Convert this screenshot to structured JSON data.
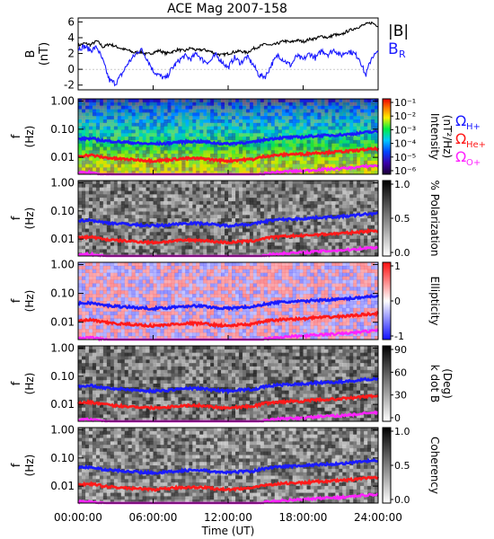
{
  "title": "ACE Mag 2007-158",
  "xaxis": {
    "label": "Time (UT)",
    "ticks": [
      "00:00:00",
      "06:00:00",
      "12:00:00",
      "18:00:00",
      "24:00:00"
    ],
    "tick_hours": [
      0,
      6,
      12,
      18,
      24
    ],
    "range_hours": [
      0,
      24
    ]
  },
  "colors": {
    "B_total": "#000000",
    "B_R": "#1a1aff",
    "H_plus": "#1a1aff",
    "He_plus": "#ff1a1a",
    "O_plus": "#ff22ff"
  },
  "chart_data": [
    {
      "type": "line",
      "panel": "magnetic-field",
      "ylabel": "B",
      "yunit": "(nT)",
      "yticks": [
        "6",
        "4",
        "2",
        "0",
        "-2"
      ],
      "ytick_values": [
        6,
        4,
        2,
        0,
        -2
      ],
      "ylim": [
        -2.6,
        6.5
      ],
      "legend": [
        "|B|",
        "B",
        "R"
      ],
      "series": [
        {
          "name": "|B|",
          "x": [
            0,
            0.5,
            1,
            1.5,
            2,
            2.5,
            3,
            3.5,
            4,
            4.5,
            5,
            5.5,
            6,
            6.5,
            7,
            7.5,
            8,
            8.5,
            9,
            9.5,
            10,
            10.5,
            11,
            11.5,
            12,
            12.5,
            13,
            13.5,
            14,
            14.5,
            15,
            15.5,
            16,
            16.5,
            17,
            17.5,
            18,
            18.5,
            19,
            19.5,
            20,
            20.5,
            21,
            21.5,
            22,
            22.5,
            23,
            23.5,
            24
          ],
          "values": [
            3.0,
            3.3,
            3.1,
            3.6,
            2.8,
            3.2,
            2.9,
            2.6,
            2.4,
            2.1,
            2.2,
            1.9,
            2.1,
            2.4,
            2.0,
            2.2,
            2.5,
            2.3,
            2.7,
            2.4,
            2.5,
            2.3,
            2.0,
            1.8,
            2.0,
            2.2,
            2.3,
            2.1,
            2.6,
            2.9,
            3.2,
            3.0,
            3.3,
            3.6,
            3.4,
            3.7,
            3.5,
            3.8,
            3.9,
            4.2,
            4.0,
            4.4,
            4.3,
            4.8,
            5.1,
            5.4,
            5.7,
            5.9,
            5.5
          ]
        },
        {
          "name": "B_R",
          "x": [
            0,
            0.5,
            1,
            1.5,
            2,
            2.5,
            3,
            3.5,
            4,
            4.5,
            5,
            5.5,
            6,
            6.5,
            7,
            7.5,
            8,
            8.5,
            9,
            9.5,
            10,
            10.5,
            11,
            11.5,
            12,
            12.5,
            13,
            13.5,
            14,
            14.5,
            15,
            15.5,
            16,
            16.5,
            17,
            17.5,
            18,
            18.5,
            19,
            19.5,
            20,
            20.5,
            21,
            21.5,
            22,
            22.5,
            23,
            23.5,
            24
          ],
          "values": [
            2.6,
            2.9,
            2.4,
            2.8,
            1.0,
            -1.4,
            -1.8,
            -0.6,
            0.8,
            1.7,
            2.6,
            1.4,
            -0.2,
            -0.8,
            -1.2,
            0.1,
            1.0,
            1.7,
            1.3,
            2.0,
            1.1,
            0.9,
            1.8,
            1.0,
            0.2,
            1.5,
            0.8,
            1.6,
            0.6,
            -0.8,
            -0.9,
            0.7,
            1.8,
            1.1,
            0.5,
            1.7,
            1.2,
            2.0,
            1.4,
            2.4,
            1.9,
            2.5,
            1.7,
            2.3,
            2.1,
            1.4,
            -0.8,
            1.6,
            2.1
          ]
        }
      ]
    },
    {
      "type": "heatmap",
      "panel": "intensity",
      "ylabel": "f",
      "yunit": "(Hz)",
      "yticks": [
        "1.00",
        "0.10",
        "0.01"
      ],
      "ytick_values": [
        1.0,
        0.1,
        0.01
      ],
      "ylim": [
        0.0025,
        1.2
      ],
      "colorbar": {
        "label": "Intensity",
        "unit": "(nT²/Hz)",
        "ticks": [
          "10⁻¹",
          "10⁻²",
          "10⁻³",
          "10⁻⁴",
          "10⁻⁵",
          "10⁻⁶"
        ],
        "tick_values": [
          0.1,
          0.01,
          0.001,
          0.0001,
          1e-05,
          1e-06
        ],
        "scale": "rainbow"
      },
      "legend": [
        "Ω",
        "H+",
        "Ω",
        "He+",
        "Ω",
        "O+"
      ]
    },
    {
      "type": "heatmap",
      "panel": "polarization",
      "ylabel": "f",
      "yunit": "(Hz)",
      "yticks": [
        "1.00",
        "0.10",
        "0.01"
      ],
      "ytick_values": [
        1.0,
        0.1,
        0.01
      ],
      "ylim": [
        0.0025,
        1.2
      ],
      "colorbar": {
        "label": "% Polarization",
        "unit": "",
        "ticks": [
          "1.0",
          "0.5",
          "0.0"
        ],
        "tick_values": [
          1.0,
          0.5,
          0.0
        ],
        "scale": "grayscale"
      }
    },
    {
      "type": "heatmap",
      "panel": "ellipticity",
      "ylabel": "f",
      "yunit": "(Hz)",
      "yticks": [
        "1.00",
        "0.10",
        "0.01"
      ],
      "ytick_values": [
        1.0,
        0.1,
        0.01
      ],
      "ylim": [
        0.0025,
        1.2
      ],
      "colorbar": {
        "label": "Ellipticity",
        "unit": "",
        "ticks": [
          "1",
          "0",
          "-1"
        ],
        "tick_values": [
          1,
          0,
          -1
        ],
        "scale": "blue-white-red"
      }
    },
    {
      "type": "heatmap",
      "panel": "k-dot-b",
      "ylabel": "f",
      "yunit": "(Hz)",
      "yticks": [
        "1.00",
        "0.10",
        "0.01"
      ],
      "ytick_values": [
        1.0,
        0.1,
        0.01
      ],
      "ylim": [
        0.0025,
        1.2
      ],
      "colorbar": {
        "label": "k dot B",
        "unit": "(Deg)",
        "ticks": [
          "90",
          "60",
          "30",
          "0"
        ],
        "tick_values": [
          90,
          60,
          30,
          0
        ],
        "scale": "grayscale"
      }
    },
    {
      "type": "heatmap",
      "panel": "coherency",
      "ylabel": "f",
      "yunit": "(Hz)",
      "yticks": [
        "1.00",
        "0.10",
        "0.01"
      ],
      "ytick_values": [
        1.0,
        0.1,
        0.01
      ],
      "ylim": [
        0.0025,
        1.2
      ],
      "colorbar": {
        "label": "Coherency",
        "unit": "",
        "ticks": [
          "1.0",
          "0.5",
          "0.0"
        ],
        "tick_values": [
          1.0,
          0.5,
          0.0
        ],
        "scale": "grayscale"
      }
    }
  ],
  "gyrofrequency_series": {
    "x": [
      0,
      1,
      2,
      3,
      4,
      5,
      6,
      7,
      8,
      9,
      10,
      11,
      12,
      13,
      14,
      15,
      16,
      17,
      18,
      19,
      20,
      21,
      22,
      23,
      24
    ],
    "H_plus_hz": [
      0.045,
      0.047,
      0.039,
      0.036,
      0.034,
      0.031,
      0.03,
      0.031,
      0.035,
      0.037,
      0.036,
      0.032,
      0.03,
      0.033,
      0.034,
      0.043,
      0.049,
      0.051,
      0.053,
      0.058,
      0.06,
      0.063,
      0.068,
      0.077,
      0.082
    ],
    "He_plus_hz": [
      0.011,
      0.012,
      0.01,
      0.009,
      0.0085,
      0.008,
      0.0075,
      0.008,
      0.0088,
      0.0092,
      0.009,
      0.008,
      0.0075,
      0.0082,
      0.0085,
      0.011,
      0.012,
      0.013,
      0.013,
      0.0145,
      0.015,
      0.016,
      0.017,
      0.019,
      0.02
    ],
    "O_plus_hz": [
      0.0028,
      0.0029,
      0.0025,
      0.0023,
      0.0022,
      0.002,
      0.0019,
      0.002,
      0.0022,
      0.0023,
      0.0023,
      0.002,
      0.0019,
      0.0021,
      0.0021,
      0.0027,
      0.003,
      0.0032,
      0.0033,
      0.0036,
      0.0038,
      0.004,
      0.0043,
      0.0048,
      0.0051
    ]
  }
}
